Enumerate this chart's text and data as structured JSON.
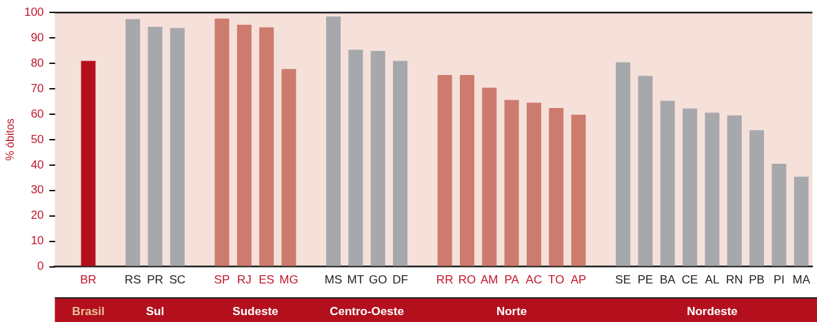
{
  "chart_data": {
    "type": "bar",
    "ylabel": "% óbitos",
    "categories": [
      null,
      "BR",
      null,
      "RS",
      "PR",
      "SC",
      null,
      "SP",
      "RJ",
      "ES",
      "MG",
      null,
      "MS",
      "MT",
      "GO",
      "DF",
      null,
      "RR",
      "RO",
      "AM",
      "PA",
      "AC",
      "TO",
      "AP",
      null,
      "SE",
      "PE",
      "BA",
      "CE",
      "AL",
      "RN",
      "PB",
      "PI",
      "MA"
    ],
    "values": [
      null,
      81,
      null,
      97.4,
      94.4,
      93.9,
      null,
      97.6,
      95.2,
      94.2,
      77.8,
      null,
      98.4,
      85.4,
      84.9,
      81,
      null,
      75.4,
      75.4,
      70.4,
      65.6,
      64.5,
      62.4,
      59.8,
      null,
      80.4,
      75.1,
      65.3,
      62.2,
      60.6,
      59.5,
      53.7,
      40.5,
      35.4
    ],
    "colors": [
      null,
      "#b30f1c",
      null,
      "#a7a8ac",
      "#a7a8ac",
      "#a7a8ac",
      null,
      "#cd7b6e",
      "#cd7b6e",
      "#cd7b6e",
      "#cd7b6e",
      null,
      "#a7a8ac",
      "#a7a8ac",
      "#a7a8ac",
      "#a7a8ac",
      null,
      "#cd7b6e",
      "#cd7b6e",
      "#cd7b6e",
      "#cd7b6e",
      "#cd7b6e",
      "#cd7b6e",
      "#cd7b6e",
      null,
      "#a7a8ac",
      "#a7a8ac",
      "#a7a8ac",
      "#a7a8ac",
      "#a7a8ac",
      "#a7a8ac",
      "#a7a8ac",
      "#a7a8ac",
      "#a7a8ac"
    ],
    "ylim": [
      0,
      100
    ],
    "yticks": [
      0,
      10,
      20,
      30,
      40,
      50,
      60,
      70,
      80,
      90,
      100
    ],
    "grid": false,
    "legend": false,
    "annotations": [
      "Brasil",
      "Sul",
      "Sudeste",
      "Centro-Oeste",
      "Norte",
      "Nordeste"
    ]
  }
}
